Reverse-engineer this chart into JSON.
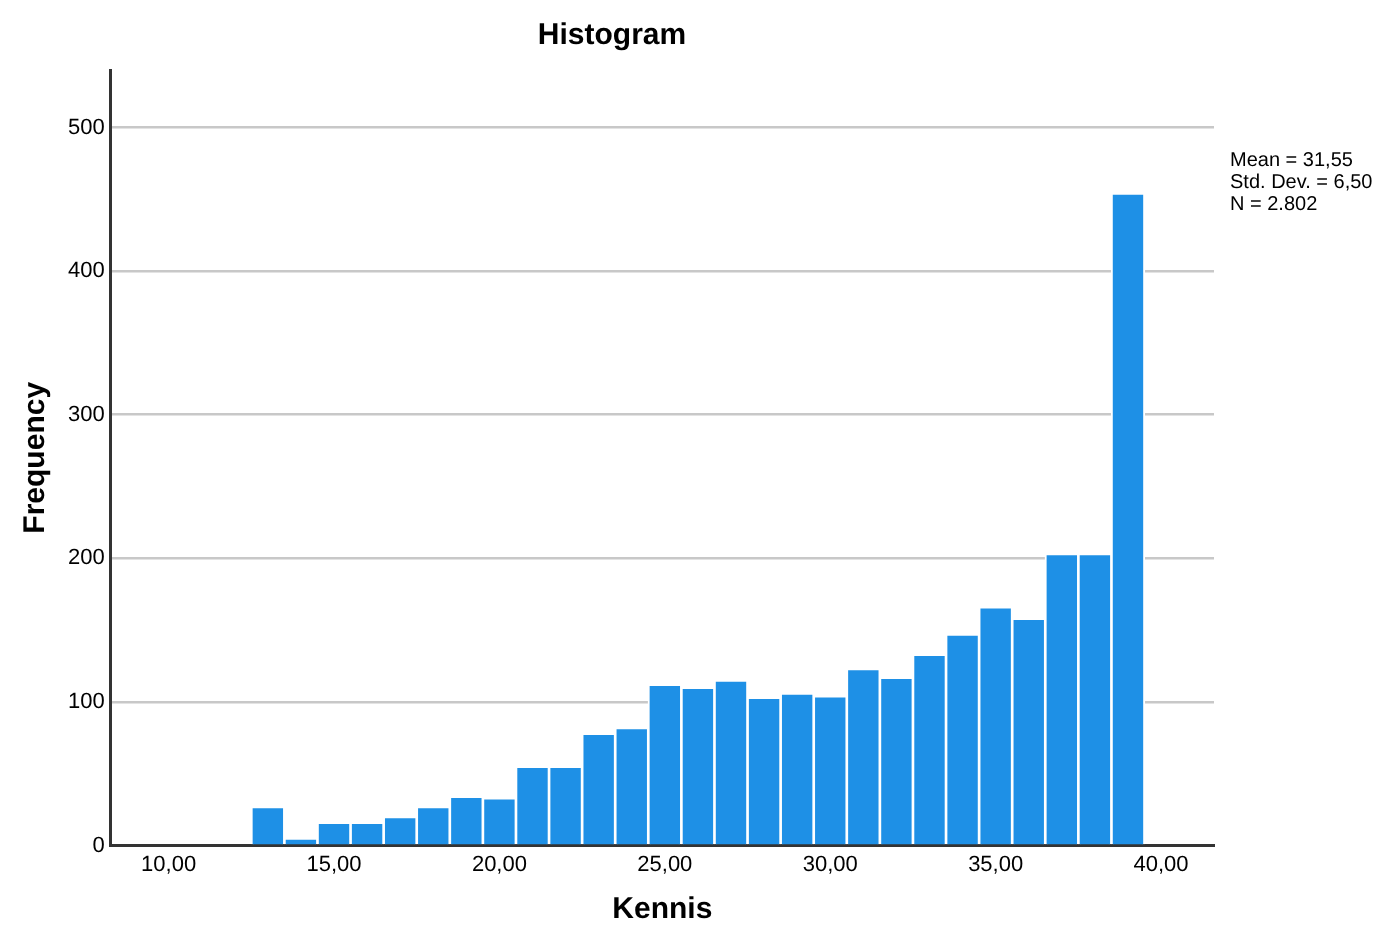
{
  "chart_data": {
    "type": "histogram",
    "title": "Histogram",
    "xlabel": "Kennis",
    "ylabel": "Frequency",
    "bins": [
      12.5,
      13.5,
      14.5,
      15.5,
      16.5,
      17.5,
      18.5,
      19.5,
      20.5,
      21.5,
      22.5,
      23.5,
      24.5,
      25.5,
      26.5,
      27.5,
      28.5,
      29.5,
      30.5,
      31.5,
      32.5,
      33.5,
      34.5,
      35.5,
      36.5,
      37.5,
      38.5,
      39.5
    ],
    "values": [
      27,
      5,
      16,
      16,
      20,
      27,
      34,
      33,
      55,
      55,
      78,
      82,
      112,
      110,
      115,
      103,
      106,
      104,
      123,
      117,
      133,
      147,
      166,
      158,
      203,
      203,
      454
    ],
    "color": "#1e90e6",
    "xlim": [
      8.25,
      41.6
    ],
    "xticks": [
      {
        "value": 10,
        "label": "10,00"
      },
      {
        "value": 15,
        "label": "15,00"
      },
      {
        "value": 20,
        "label": "20,00"
      },
      {
        "value": 25,
        "label": "25,00"
      },
      {
        "value": 30,
        "label": "30,00"
      },
      {
        "value": 35,
        "label": "35,00"
      },
      {
        "value": 40,
        "label": "40,00"
      }
    ],
    "ylim": [
      0,
      540
    ],
    "yticks": [
      0,
      100,
      200,
      300,
      400,
      500
    ],
    "grid": "y",
    "annotations": [
      "Mean = 31,55",
      "Std. Dev. = 6,50",
      "N = 2.802"
    ]
  }
}
